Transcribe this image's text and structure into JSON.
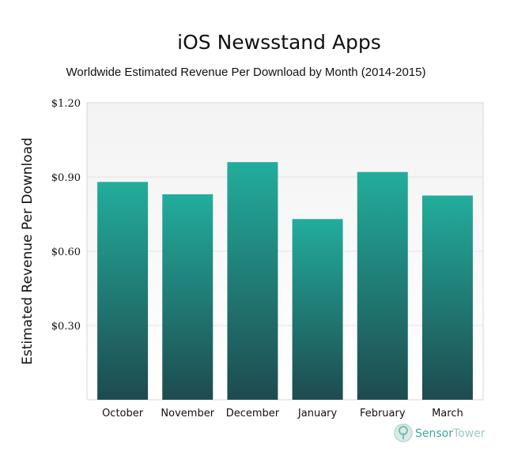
{
  "chart_data": {
    "type": "bar",
    "title": "iOS Newsstand Apps",
    "subtitle": "Worldwide Estimated Revenue Per Download by Month (2014-2015)",
    "xlabel": "",
    "ylabel": "Estimated Revenue Per Download",
    "categories": [
      "October",
      "November",
      "December",
      "January",
      "February",
      "March"
    ],
    "values": [
      0.88,
      0.83,
      0.96,
      0.73,
      0.92,
      0.825
    ],
    "ylim": [
      0,
      1.2
    ],
    "yticks": [
      0.3,
      0.6,
      0.9,
      1.2
    ],
    "ytick_labels": [
      "$0.30",
      "$0.60",
      "$0.90",
      "$1.20"
    ],
    "grid": true,
    "legend": "none",
    "colors": {
      "bar_top": "#22ad9c",
      "bar_bottom": "#1e4b4f",
      "plot_bg_top": "#f3f3f3",
      "plot_bg_bottom": "#ffffff"
    }
  },
  "watermark": {
    "brand_part1": "Sensor",
    "brand_part2": "Tower",
    "icon": "sensor-tower-logo-icon",
    "colors": {
      "part1": "#3aa89c",
      "part2": "#9cc9c2"
    }
  }
}
